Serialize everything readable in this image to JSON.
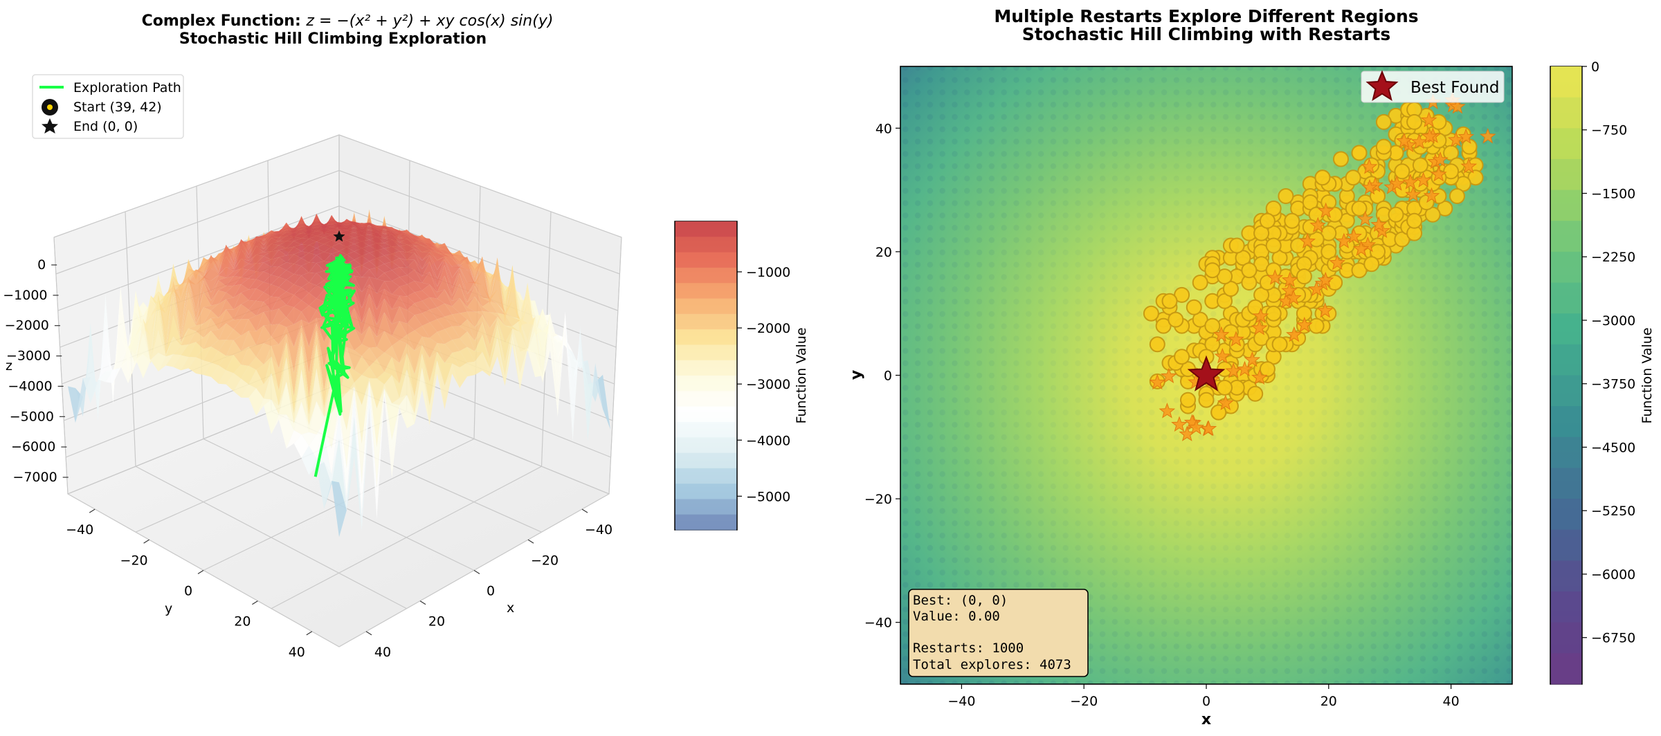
{
  "chart_data": [
    {
      "type": "surface3d",
      "title_prefix": "Complex Function: ",
      "title_formula": "z = −(x² + y²) + xy cos(x) sin(y)",
      "subtitle": "Stochastic Hill Climbing Exploration",
      "xlabel": "x",
      "ylabel": "y",
      "zlabel": "z",
      "x_ticks": [
        "−40",
        "−20",
        "0",
        "20",
        "40"
      ],
      "y_ticks": [
        "−40",
        "−20",
        "0",
        "20",
        "40"
      ],
      "z_ticks": [
        "0",
        "−1000",
        "−2000",
        "−3000",
        "−4000",
        "−5000",
        "−6000",
        "−7000"
      ],
      "legend": [
        {
          "label": "Exploration Path",
          "icon": "green-line"
        },
        {
          "label": "Start (39, 42)",
          "icon": "black-circle-yellow-dot"
        },
        {
          "label": "End (0, 0)",
          "icon": "black-star"
        }
      ],
      "colorbar": {
        "label": "Function Value",
        "ticks": [
          "−1000",
          "−2000",
          "−3000",
          "−4000",
          "−5000"
        ],
        "range": [
          -5600,
          -100
        ],
        "colormap": "RdYlBu"
      },
      "path_color": "#19ff47",
      "start": [
        39,
        42
      ],
      "end": [
        0,
        0
      ]
    },
    {
      "type": "heatmap",
      "title": "Multiple Restarts Explore Different Regions",
      "subtitle": "Stochastic Hill Climbing with Restarts",
      "xlabel": "x",
      "ylabel": "y",
      "xlim": [
        -50,
        50
      ],
      "ylim": [
        -50,
        50
      ],
      "x_ticks": [
        "−40",
        "−20",
        "0",
        "20",
        "40"
      ],
      "y_ticks": [
        "40",
        "20",
        "0",
        "−20",
        "−40"
      ],
      "colorbar": {
        "label": "Function Value",
        "ticks": [
          "0",
          "−750",
          "−1500",
          "−2250",
          "−3000",
          "−3750",
          "−4500",
          "−5250",
          "−6000",
          "−6750"
        ],
        "range": [
          -7300,
          0
        ],
        "colormap": "viridis"
      },
      "legend": [
        {
          "label": "Best Found",
          "icon": "dark-red-star"
        }
      ],
      "best_point": [
        0,
        0
      ],
      "annotation_lines": [
        "Best: (0, 0)",
        "Value: 0.00",
        "",
        "Restarts: 1000",
        "Total explores: 4073"
      ],
      "series": [
        {
          "marker": "gold-circle",
          "region": "diagonal band from (-8, -4) to (42, 42)"
        },
        {
          "marker": "orange-star",
          "region": "restart start points along the band"
        }
      ]
    }
  ]
}
